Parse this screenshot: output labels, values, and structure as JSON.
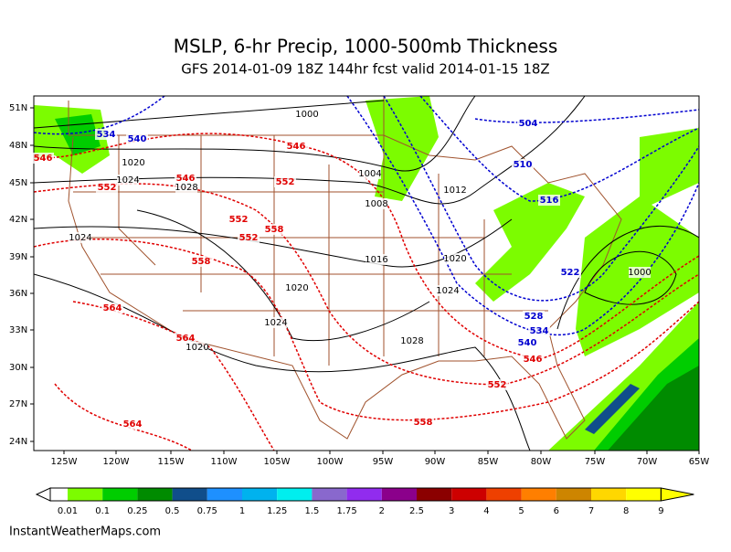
{
  "header": {
    "title": "MSLP, 6-hr Precip, 1000-500mb Thickness",
    "subtitle": "GFS 2014-01-09 18Z 144hr fcst valid 2014-01-15 18Z"
  },
  "map": {
    "lat_labels": [
      "51N",
      "48N",
      "45N",
      "42N",
      "39N",
      "36N",
      "33N",
      "30N",
      "27N",
      "24N"
    ],
    "lon_labels": [
      "125W",
      "120W",
      "115W",
      "110W",
      "105W",
      "100W",
      "95W",
      "90W",
      "85W",
      "80W",
      "75W",
      "70W",
      "65W"
    ],
    "isobar_labels": [
      1000,
      1020,
      1024,
      1028,
      1004,
      1008,
      1012,
      1024,
      1016,
      1020,
      1020,
      1024,
      1024,
      1028,
      1020,
      1000
    ],
    "thickness_warm_labels": [
      546,
      552,
      546,
      546,
      552,
      552,
      552,
      558,
      558,
      564,
      564,
      546,
      552,
      558,
      564
    ],
    "thickness_cold_labels": [
      534,
      540,
      504,
      510,
      516,
      522,
      528,
      534,
      540
    ]
  },
  "colorbar": {
    "labels": [
      "0.01",
      "0.1",
      "0.25",
      "0.5",
      "0.75",
      "1",
      "1.25",
      "1.5",
      "1.75",
      "2",
      "2.5",
      "3",
      "4",
      "5",
      "6",
      "7",
      "8",
      "9"
    ],
    "colors": [
      "#7cfc00",
      "#00cd00",
      "#008b00",
      "#104e8b",
      "#1e90ff",
      "#00b2ee",
      "#00eeee",
      "#8968cd",
      "#912cee",
      "#8b008b",
      "#8b0000",
      "#cd0000",
      "#ee4000",
      "#ff7f00",
      "#cd8500",
      "#ffd700",
      "#ffff00",
      "#ffff00"
    ]
  },
  "footer": {
    "credit": "InstantWeatherMaps.com"
  }
}
